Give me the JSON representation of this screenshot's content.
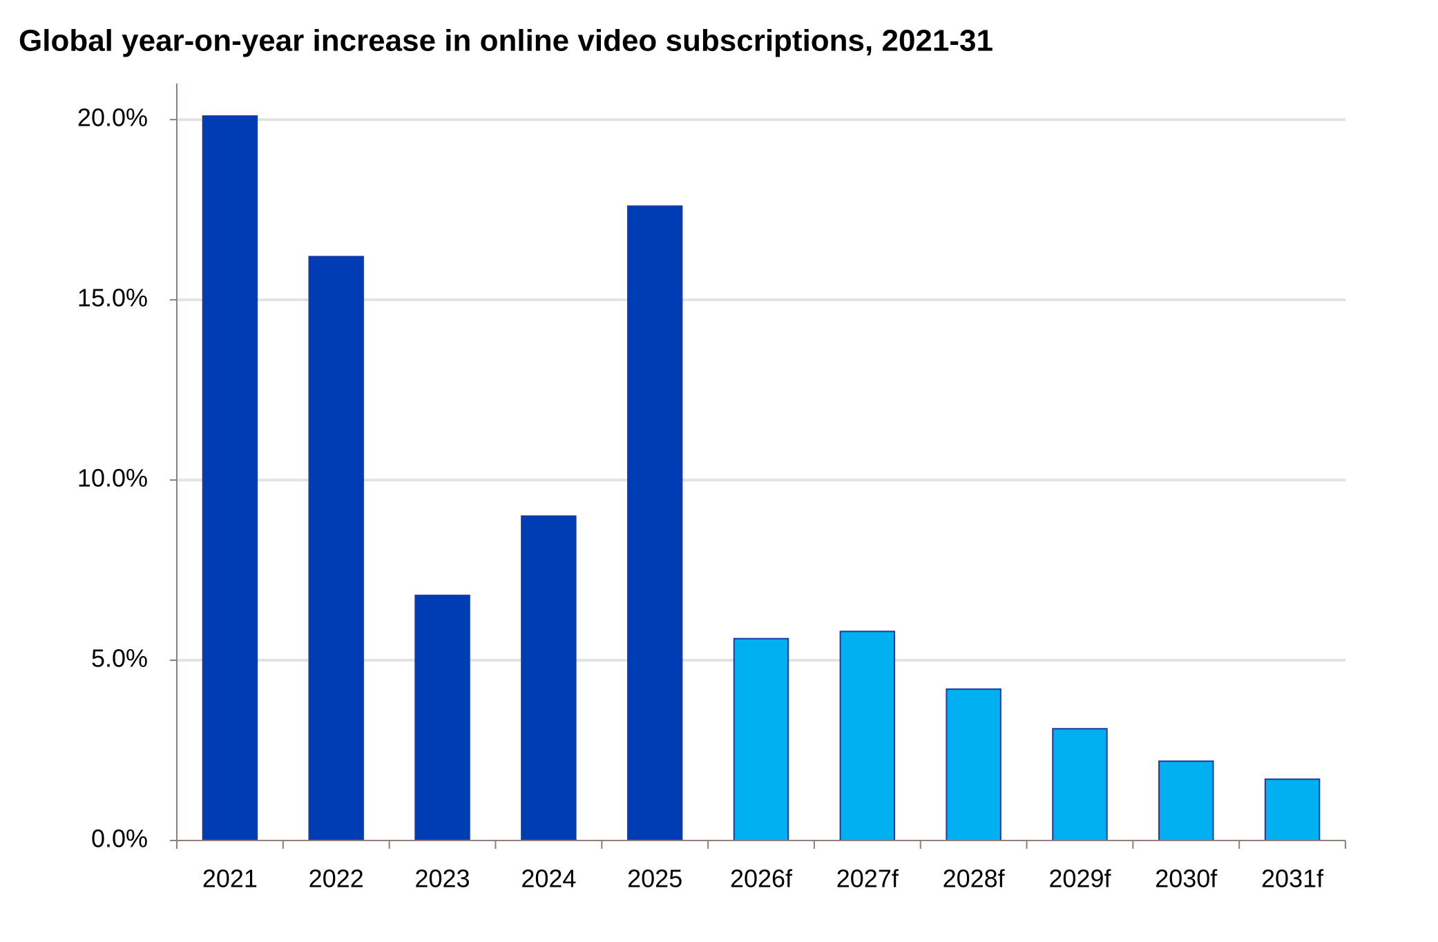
{
  "chart_data": {
    "type": "bar",
    "title": "Global year-on-year increase in online video subscriptions, 2021-31",
    "categories": [
      "2021",
      "2022",
      "2023",
      "2024",
      "2025",
      "2026f",
      "2027f",
      "2028f",
      "2029f",
      "2030f",
      "2031f"
    ],
    "values": [
      20.1,
      16.2,
      6.8,
      9.0,
      17.6,
      5.6,
      5.8,
      4.2,
      3.1,
      2.2,
      1.7
    ],
    "colors": [
      "#003cb3",
      "#003cb3",
      "#003cb3",
      "#003cb3",
      "#003cb3",
      "#00b0f0",
      "#00b0f0",
      "#00b0f0",
      "#00b0f0",
      "#00b0f0",
      "#00b0f0"
    ],
    "edgecolor": "#1a3aa0",
    "ylim": [
      0,
      21
    ],
    "yticks": [
      {
        "value": 0,
        "label": "0.0%"
      },
      {
        "value": 5,
        "label": "5.0%"
      },
      {
        "value": 10,
        "label": "10.0%"
      },
      {
        "value": 15,
        "label": "15.0%"
      },
      {
        "value": 20,
        "label": "20.0%"
      }
    ],
    "grid": true
  }
}
